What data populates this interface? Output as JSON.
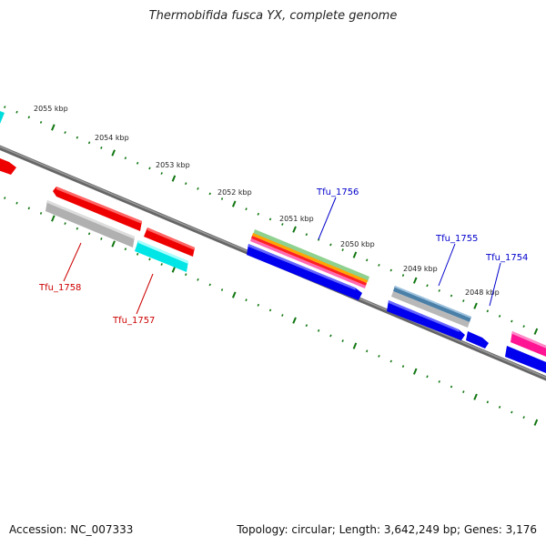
{
  "title": "Thermobifida fusca YX, complete genome",
  "footer": {
    "accession": "Accession: NC_007333",
    "stats": "Topology: circular; Length: 3,642,249 bp; Genes: 3,176"
  },
  "scale_labels": [
    "2055 kbp",
    "2054 kbp",
    "2053 kbp",
    "2052 kbp",
    "2051 kbp",
    "2050 kbp",
    "2049 kbp",
    "2048 kbp"
  ],
  "gene_labels": [
    {
      "id": "Tfu_1756",
      "color": "#0000cc"
    },
    {
      "id": "Tfu_1755",
      "color": "#0000cc"
    },
    {
      "id": "Tfu_1754",
      "color": "#0000cc"
    },
    {
      "id": "Tfu_1758",
      "color": "#cc0000"
    },
    {
      "id": "Tfu_1757",
      "color": "#cc0000"
    }
  ],
  "colors": {
    "backbone": "#808080",
    "tick": "#117711",
    "forward_cds": "#ff0000",
    "reverse_cds": "#0000ff",
    "rna": "#00e5e5",
    "grey_feature": "#b3b3b3",
    "steel_feature": "#4a7fa8",
    "pink_feature": "#ff1493"
  }
}
